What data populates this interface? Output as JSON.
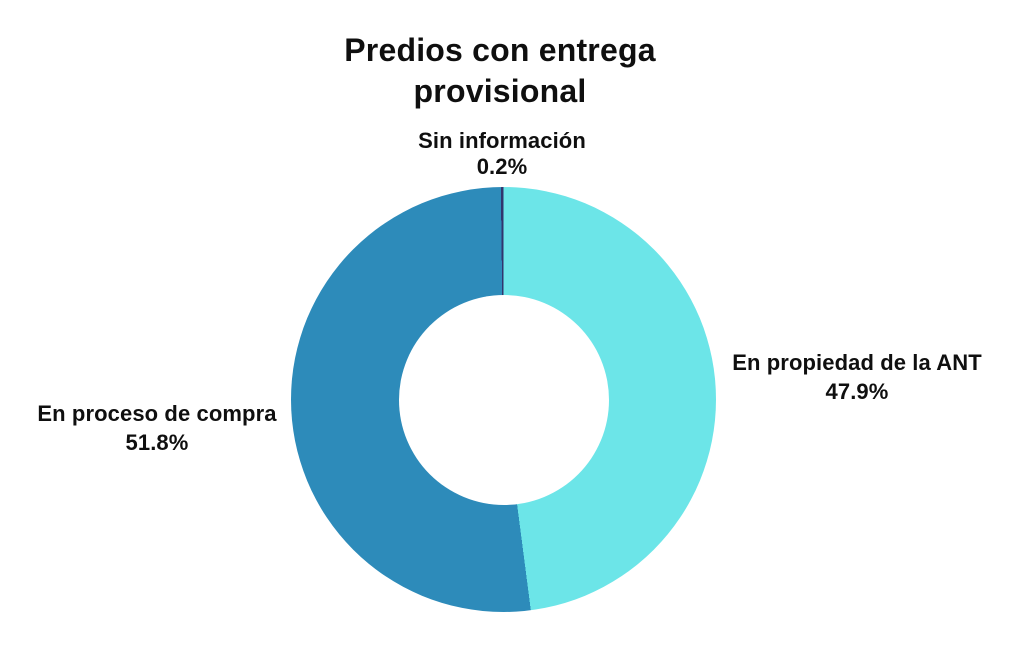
{
  "page": {
    "background_color": "#ffffff"
  },
  "title": {
    "text": "Predios con entrega provisional",
    "lines": [
      "Predios con entrega",
      "provisional"
    ],
    "color": "#0f0f0f"
  },
  "chart_data": {
    "type": "pie",
    "variant": "donut",
    "title": "Predios con entrega provisional",
    "start_angle_deg": 0,
    "direction": "clockwise",
    "inner_radius_ratio": 0.494,
    "legend": "none",
    "labels_position": "outside",
    "background": "#ffffff",
    "slices": [
      {
        "label": "En propiedad de la ANT",
        "value": 47.9,
        "percent_label": "47.9%",
        "color": "#6CE5E8",
        "callout_position": "right"
      },
      {
        "label": "En proceso de compra",
        "value": 51.8,
        "percent_label": "51.8%",
        "color": "#2D8BBA",
        "callout_position": "left"
      },
      {
        "label": "Sin información",
        "value": 0.2,
        "percent_label": "0.2%",
        "color": "#31356E",
        "callout_position": "top"
      }
    ]
  }
}
